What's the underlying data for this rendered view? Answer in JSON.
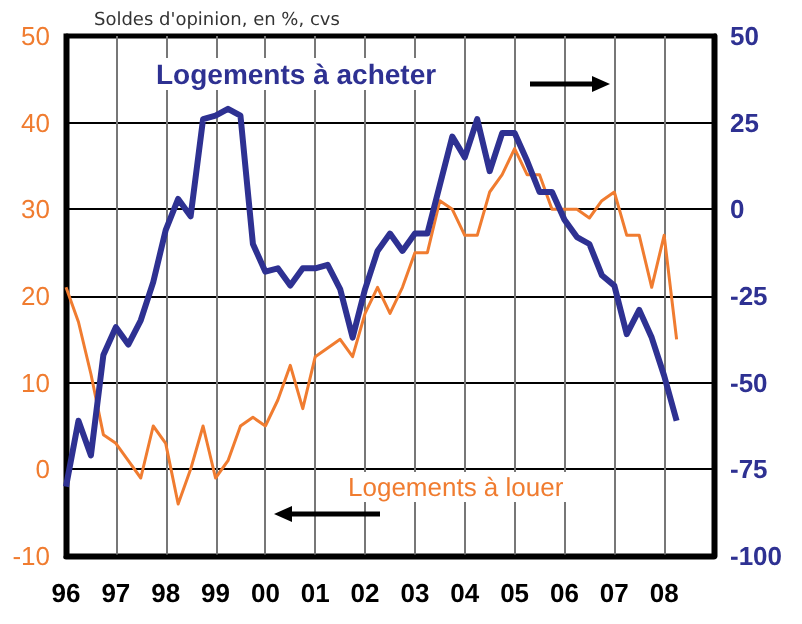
{
  "chart_data": {
    "type": "line",
    "title": "Soldes d'opinion, en %, cvs",
    "x": [
      1996,
      1996.25,
      1996.5,
      1996.75,
      1997,
      1997.25,
      1997.5,
      1997.75,
      1998,
      1998.25,
      1998.5,
      1998.75,
      1999,
      1999.25,
      1999.5,
      1999.75,
      2000,
      2000.25,
      2000.5,
      2000.75,
      2001,
      2001.25,
      2001.5,
      2001.75,
      2002,
      2002.25,
      2002.5,
      2002.75,
      2003,
      2003.25,
      2003.5,
      2003.75,
      2004,
      2004.25,
      2004.5,
      2004.75,
      2005,
      2005.25,
      2005.5,
      2005.75,
      2006,
      2006.25,
      2006.5,
      2006.75,
      2007,
      2007.25,
      2007.5,
      2007.75,
      2008,
      2008.25
    ],
    "series": [
      {
        "name": "Logements à acheter",
        "color": "#2e3192",
        "axis": "y2",
        "values": [
          -80,
          -61,
          -71,
          -42,
          -34,
          -39,
          -32,
          -21,
          -6,
          3,
          -2,
          26,
          27,
          29,
          27,
          -10,
          -18,
          -17,
          -22,
          -17,
          -17,
          -16,
          -23,
          -37,
          -23,
          -12,
          -7,
          -12,
          -7,
          -7,
          7,
          21,
          15,
          26,
          11,
          22,
          22,
          14,
          5,
          5,
          -3,
          -8,
          -10,
          -19,
          -22,
          -36,
          -29,
          -37,
          -48,
          -61
        ]
      },
      {
        "name": "Logements à louer",
        "color": "#f07c30",
        "axis": "y",
        "values": [
          21,
          17,
          11,
          4,
          3,
          1,
          -1,
          5,
          3,
          -4,
          0,
          5,
          -1,
          1,
          5,
          6,
          5,
          8,
          12,
          7,
          13,
          14,
          15,
          13,
          18,
          21,
          18,
          21,
          25,
          25,
          31,
          30,
          27,
          27,
          32,
          34,
          37,
          34,
          34,
          30,
          30,
          30,
          29,
          31,
          32,
          27,
          27,
          21,
          27,
          15
        ]
      }
    ],
    "xlim": [
      1996,
      2009
    ],
    "xticks": [
      {
        "value": 1996,
        "label": "96"
      },
      {
        "value": 1997,
        "label": "97"
      },
      {
        "value": 1998,
        "label": "98"
      },
      {
        "value": 1999,
        "label": "99"
      },
      {
        "value": 2000,
        "label": "00"
      },
      {
        "value": 2001,
        "label": "01"
      },
      {
        "value": 2002,
        "label": "02"
      },
      {
        "value": 2003,
        "label": "03"
      },
      {
        "value": 2004,
        "label": "04"
      },
      {
        "value": 2005,
        "label": "05"
      },
      {
        "value": 2006,
        "label": "06"
      },
      {
        "value": 2007,
        "label": "07"
      },
      {
        "value": 2008,
        "label": "08"
      }
    ],
    "ylim": [
      -10,
      50
    ],
    "yticks": [
      -10,
      0,
      10,
      20,
      30,
      40,
      50
    ],
    "y2lim": [
      -100,
      50
    ],
    "y2ticks": [
      -100,
      -75,
      -50,
      -25,
      0,
      25,
      50
    ],
    "grid": true,
    "marker": "none"
  }
}
